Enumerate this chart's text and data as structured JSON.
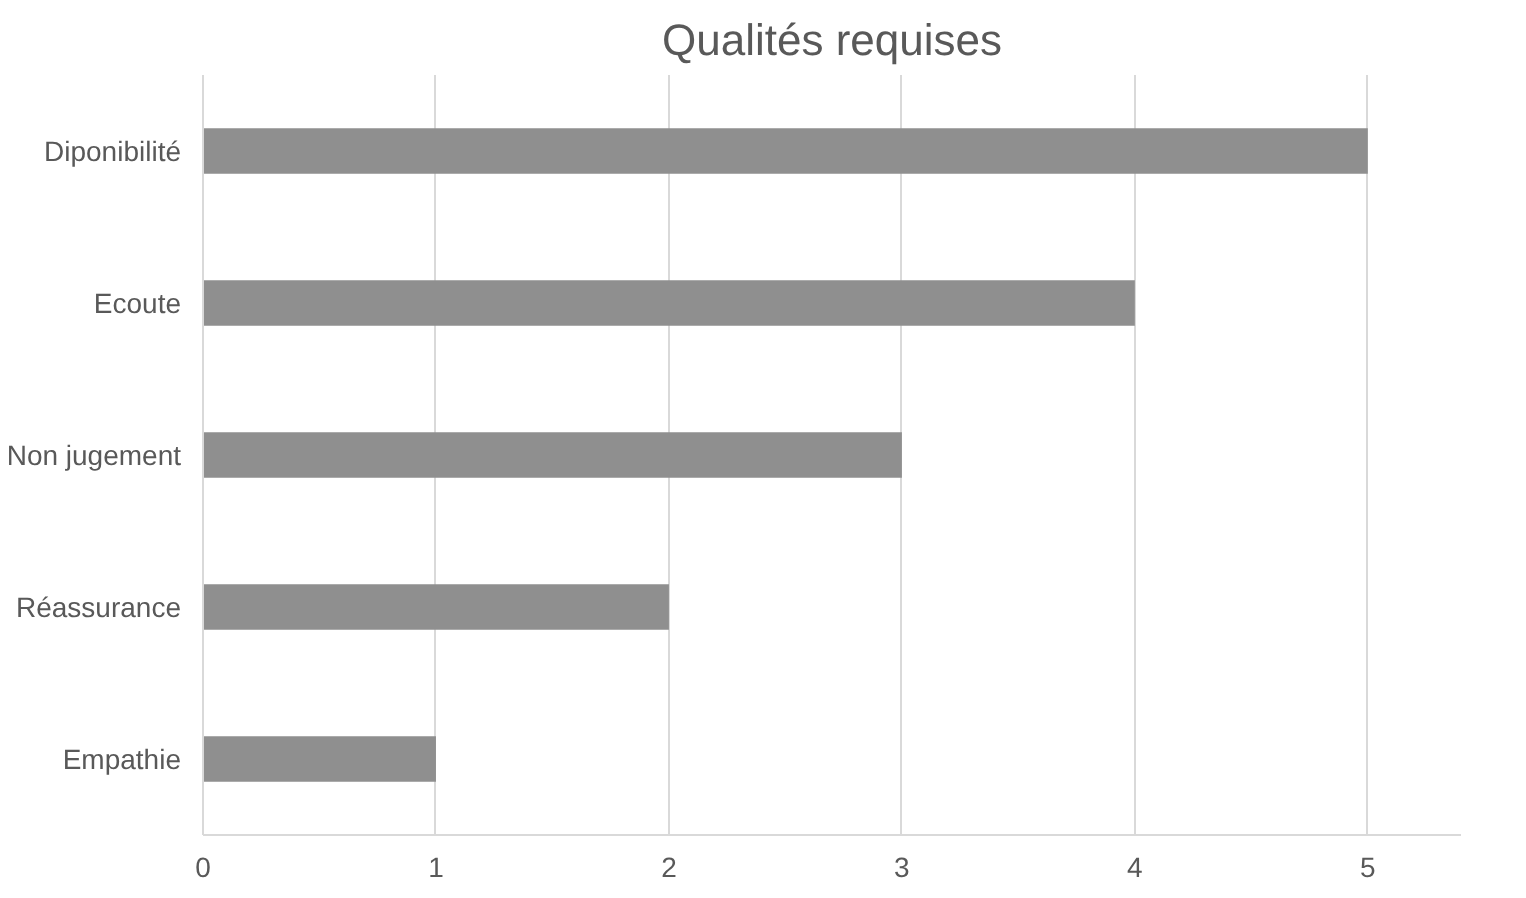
{
  "chart_data": {
    "type": "bar",
    "orientation": "horizontal",
    "title": "Qualités requises",
    "categories": [
      "Diponibilité",
      "Ecoute",
      "Non jugement",
      "Réassurance",
      "Empathie"
    ],
    "values": [
      5,
      4,
      3,
      2,
      1
    ],
    "color": "#8f8f8f",
    "xlim": [
      0,
      5.4
    ],
    "xticks": [
      0,
      1,
      2,
      3,
      4,
      5
    ],
    "grid": "x"
  }
}
